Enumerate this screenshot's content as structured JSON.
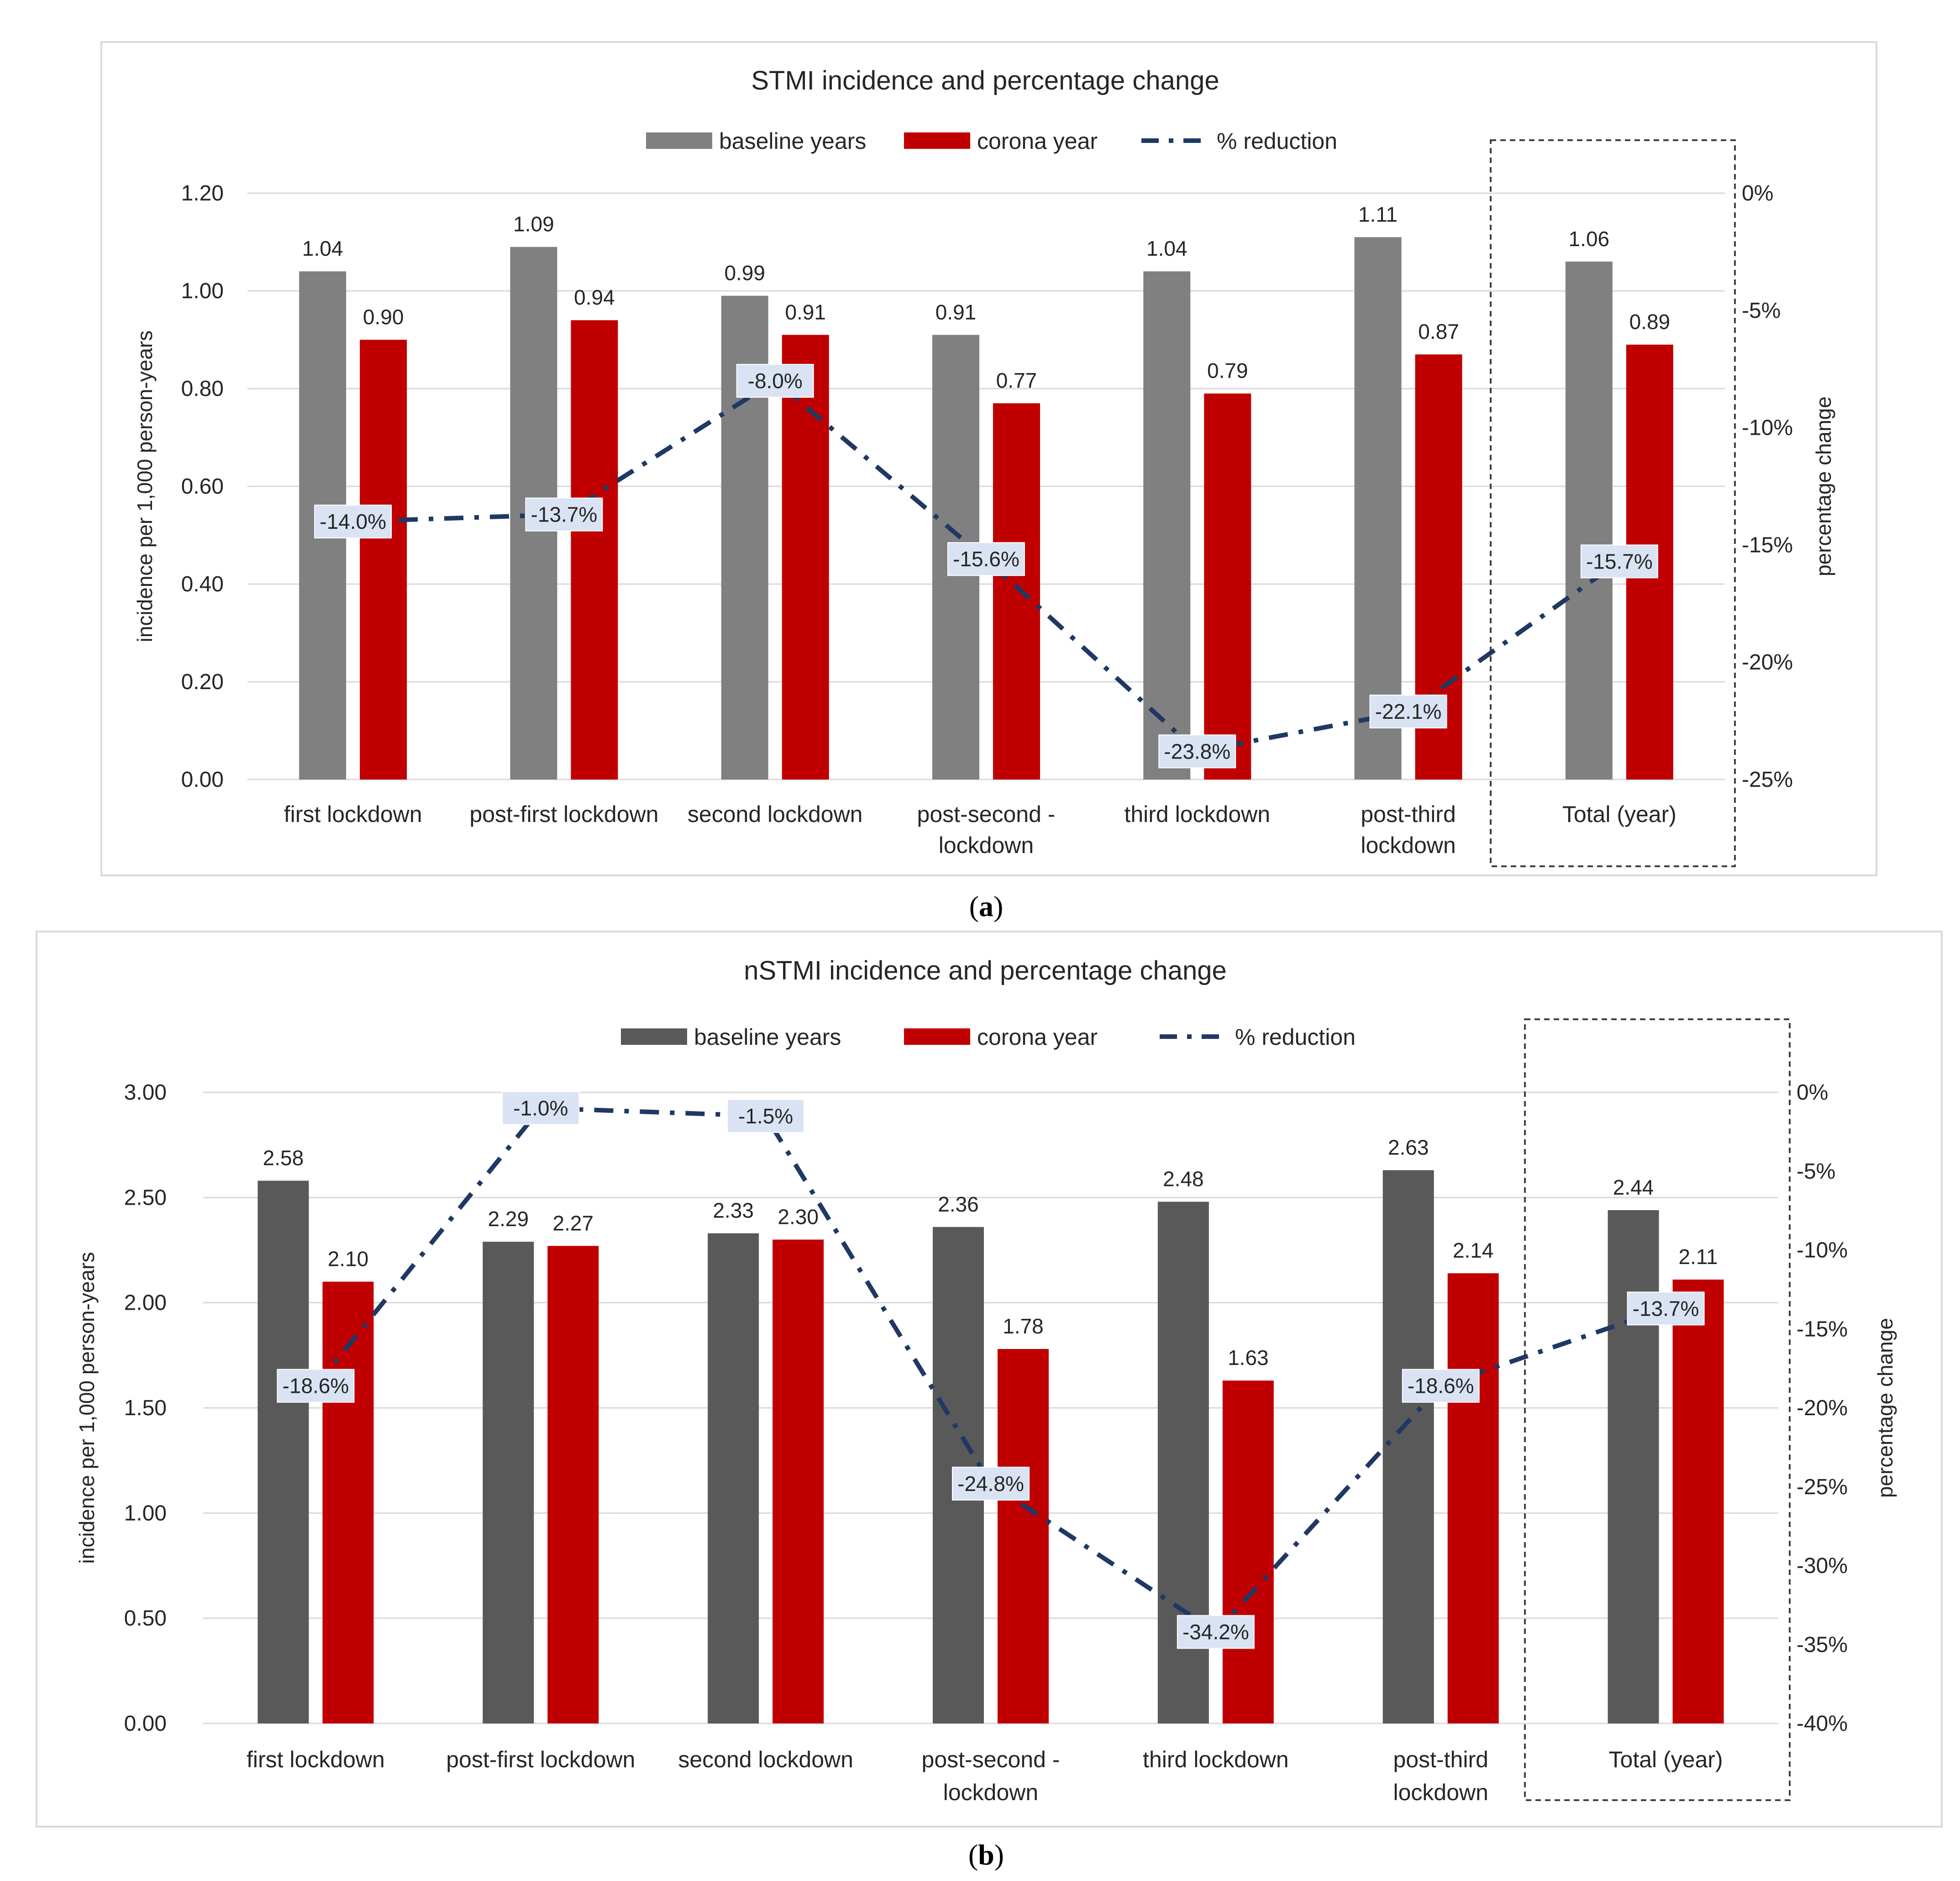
{
  "chart_data": [
    {
      "type": "bar",
      "panel_label": "a",
      "title": "STMI incidence and percentage change",
      "ylabel": "incidence per 1,000 person-years",
      "y2label": "percentage change",
      "ylim": [
        0,
        1.2
      ],
      "yticks": [
        "0.00",
        "0.20",
        "0.40",
        "0.60",
        "0.80",
        "1.00",
        "1.20"
      ],
      "y2lim": [
        -25,
        0
      ],
      "y2ticks": [
        "0%",
        "-5%",
        "-10%",
        "-15%",
        "-20%",
        "-25%"
      ],
      "categories": [
        [
          "first lockdown"
        ],
        [
          "post-first lockdown"
        ],
        [
          "second lockdown"
        ],
        [
          "post-second -",
          "lockdown"
        ],
        [
          "third lockdown"
        ],
        [
          "post-third",
          "lockdown"
        ],
        [
          "Total (year)"
        ]
      ],
      "series": [
        {
          "name": "baseline years",
          "values": [
            1.04,
            1.09,
            0.99,
            0.91,
            1.04,
            1.11,
            1.06
          ],
          "labels": [
            "1.04",
            "1.09",
            "0.99",
            "0.91",
            "1.04",
            "1.11",
            "1.06"
          ],
          "color": "#808080"
        },
        {
          "name": "corona year",
          "values": [
            0.9,
            0.94,
            0.91,
            0.77,
            0.79,
            0.87,
            0.89
          ],
          "labels": [
            "0.90",
            "0.94",
            "0.91",
            "0.77",
            "0.79",
            "0.87",
            "0.89"
          ],
          "color": "#c00000"
        },
        {
          "name": "% reduction",
          "values": [
            -14.0,
            -13.7,
            -8.0,
            -15.6,
            -23.8,
            -22.1,
            -15.7
          ],
          "labels": [
            "-14.0%",
            "-13.7%",
            "-8.0%",
            "-15.6%",
            "-23.8%",
            "-22.1%",
            "-15.7%"
          ],
          "color": "#1f3864"
        }
      ]
    },
    {
      "type": "bar",
      "panel_label": "b",
      "title": "nSTMI incidence and percentage change",
      "ylabel": "incidence per 1,000 person-years",
      "y2label": "percentage change",
      "ylim": [
        0,
        3.0
      ],
      "yticks": [
        "0.00",
        "0.50",
        "1.00",
        "1.50",
        "2.00",
        "2.50",
        "3.00"
      ],
      "y2lim": [
        -40,
        0
      ],
      "y2ticks": [
        "0%",
        "-5%",
        "-10%",
        "-15%",
        "-20%",
        "-25%",
        "-30%",
        "-35%",
        "-40%"
      ],
      "categories": [
        [
          "first lockdown"
        ],
        [
          "post-first lockdown"
        ],
        [
          "second lockdown"
        ],
        [
          "post-second -",
          "lockdown"
        ],
        [
          "third lockdown"
        ],
        [
          "post-third",
          "lockdown"
        ],
        [
          "Total (year)"
        ]
      ],
      "series": [
        {
          "name": "baseline years",
          "values": [
            2.58,
            2.29,
            2.33,
            2.36,
            2.48,
            2.63,
            2.44
          ],
          "labels": [
            "2.58",
            "2.29",
            "2.33",
            "2.36",
            "2.48",
            "2.63",
            "2.44"
          ],
          "color": "#595959"
        },
        {
          "name": "corona year",
          "values": [
            2.1,
            2.27,
            2.3,
            1.78,
            1.63,
            2.14,
            2.11
          ],
          "labels": [
            "2.10",
            "2.27",
            "2.30",
            "1.78",
            "1.63",
            "2.14",
            "2.11"
          ],
          "color": "#c00000"
        },
        {
          "name": "% reduction",
          "values": [
            -18.6,
            -1.0,
            -1.5,
            -24.8,
            -34.2,
            -18.6,
            -13.7
          ],
          "labels": [
            "-18.6%",
            "-1.0%",
            "-1.5%",
            "-24.8%",
            "-34.2%",
            "-18.6%",
            "-13.7%"
          ],
          "color": "#1f3864"
        }
      ]
    }
  ]
}
